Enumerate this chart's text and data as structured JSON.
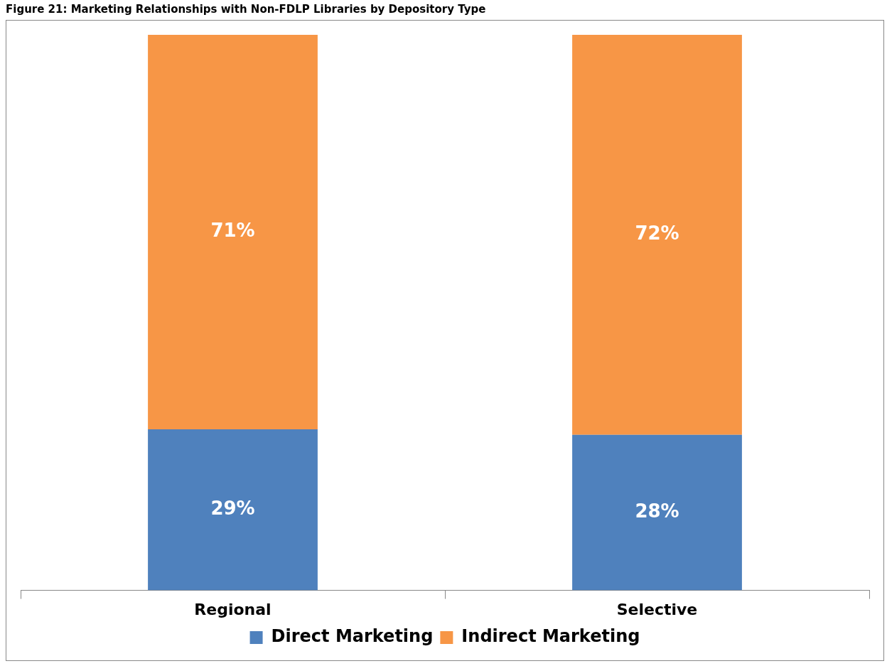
{
  "chart_data": {
    "type": "bar",
    "title": "Figure 21: Marketing Relationships with Non-FDLP Libraries by Depository Type",
    "categories": [
      "Regional",
      "Selective"
    ],
    "stacked": true,
    "legend": "bottom",
    "grid": false,
    "series": [
      {
        "name": "Direct Marketing",
        "color": "#4f81bd",
        "values": [
          29,
          28
        ],
        "value_labels": [
          "29%",
          "28%"
        ]
      },
      {
        "name": "Indirect Marketing",
        "color": "#f79646",
        "values": [
          71,
          72
        ],
        "value_labels": [
          "71%",
          "72%"
        ]
      }
    ]
  }
}
